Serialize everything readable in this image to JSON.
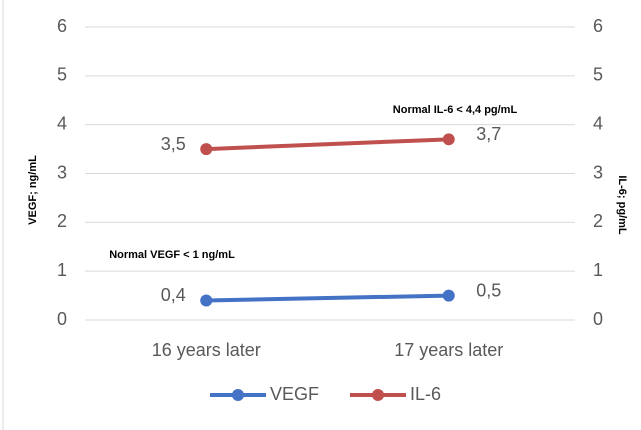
{
  "chart_data": {
    "type": "line",
    "categories": [
      "16 years later",
      "17 years later"
    ],
    "series": [
      {
        "name": "VEGF",
        "color": "#4472c4",
        "values": [
          0.4,
          0.5
        ],
        "value_labels": [
          "0,4",
          "0,5"
        ]
      },
      {
        "name": "IL-6",
        "color": "#c0504d",
        "values": [
          3.5,
          3.7
        ],
        "value_labels": [
          "3,5",
          "3,7"
        ],
        "axis": "y2"
      }
    ],
    "ylabel": "VEGF; ng/mL",
    "y2label": "IL-6; pg/mL",
    "ylim": [
      0,
      6
    ],
    "yticks": [
      0,
      1,
      2,
      3,
      4,
      5,
      6
    ],
    "y2lim": [
      0,
      6
    ],
    "y2ticks": [
      0,
      1,
      2,
      3,
      4,
      5,
      6
    ],
    "grid": true,
    "legend": "bottom",
    "annotations": [
      "Normal IL-6 < 4,4 pg/mL",
      "Normal VEGF < 1 ng/mL"
    ]
  }
}
